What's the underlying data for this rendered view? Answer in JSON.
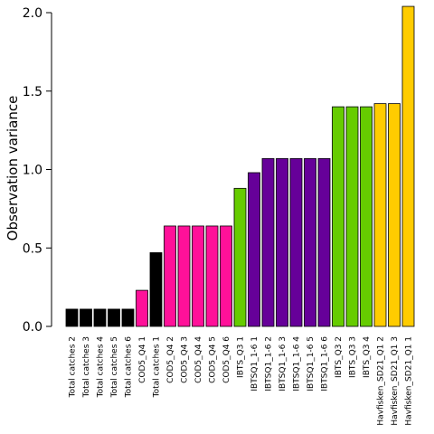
{
  "chart_data": {
    "type": "bar",
    "title": "",
    "xlabel": "",
    "ylabel": "Observation variance",
    "ylim": [
      0,
      2.0
    ],
    "yticks": [
      0.0,
      0.5,
      1.0,
      1.5,
      2.0
    ],
    "ytick_labels": [
      "0.0",
      "0.5",
      "1.0",
      "1.5",
      "2.0"
    ],
    "grid": false,
    "categories": [
      "Total catches 2",
      "Total catches 3",
      "Total catches 4",
      "Total catches 5",
      "Total catches 6",
      "COD5_Q4 1",
      "Total catches 1",
      "COD5_Q4 2",
      "COD5_Q4 3",
      "COD5_Q4 4",
      "COD5_Q4 5",
      "COD5_Q4 6",
      "IBTS_Q3 1",
      "IBTSQ1_1-6 1",
      "IBTSQ1_1-6 2",
      "IBTSQ1_1-6 3",
      "IBTSQ1_1-6 4",
      "IBTSQ1_1-6 5",
      "IBTSQ1_1-6 6",
      "IBTS_Q3 2",
      "IBTS_Q3 3",
      "IBTS_Q3 4",
      "Havfisken_SD21_Q1 2",
      "Havfisken_SD21_Q1 3",
      "Havfisken_SD21_Q1 1"
    ],
    "values": [
      0.11,
      0.11,
      0.11,
      0.11,
      0.11,
      0.23,
      0.47,
      0.64,
      0.64,
      0.64,
      0.64,
      0.64,
      0.88,
      0.98,
      1.07,
      1.07,
      1.07,
      1.07,
      1.07,
      1.4,
      1.4,
      1.4,
      1.42,
      1.42,
      2.04
    ],
    "colors": [
      "#000000",
      "#000000",
      "#000000",
      "#000000",
      "#000000",
      "#ff1199",
      "#000000",
      "#ff1199",
      "#ff1199",
      "#ff1199",
      "#ff1199",
      "#ff1199",
      "#66cc00",
      "#660099",
      "#660099",
      "#660099",
      "#660099",
      "#660099",
      "#660099",
      "#66cc00",
      "#66cc00",
      "#66cc00",
      "#ffcc00",
      "#ffcc00",
      "#ffcc00"
    ],
    "bar_edge_color": "#000000"
  }
}
